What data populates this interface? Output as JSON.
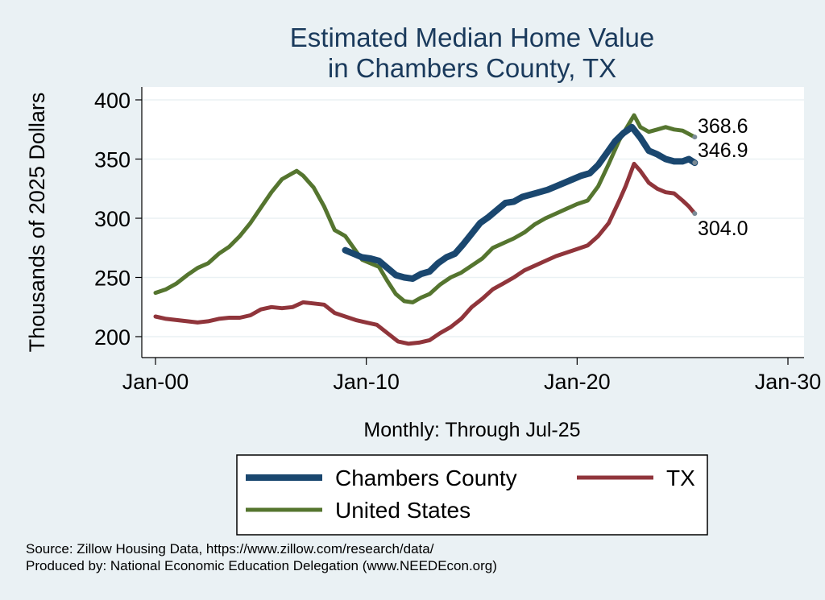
{
  "chart_data": {
    "type": "line",
    "title": [
      "Estimated Median Home Value",
      "in Chambers County, TX"
    ],
    "xlabel": "Monthly: Through Jul-25",
    "ylabel": "Thousands of 2025 Dollars",
    "ylim": [
      190,
      410
    ],
    "xlim": [
      2000.0,
      2030.0
    ],
    "yticks": [
      200,
      250,
      300,
      350,
      400
    ],
    "xticks": [
      {
        "value": 2000.0,
        "label": "Jan-00"
      },
      {
        "value": 2010.0,
        "label": "Jan-10"
      },
      {
        "value": 2020.0,
        "label": "Jan-20"
      },
      {
        "value": 2030.0,
        "label": "Jan-30"
      }
    ],
    "grid": true,
    "legend_position": "bottom",
    "series": [
      {
        "name": "Chambers County",
        "color": "#1a476f",
        "end_label": "346.9",
        "points": [
          [
            2009.0,
            273
          ],
          [
            2009.4,
            270
          ],
          [
            2009.8,
            267
          ],
          [
            2010.2,
            266
          ],
          [
            2010.6,
            264
          ],
          [
            2011.0,
            258
          ],
          [
            2011.4,
            252
          ],
          [
            2011.8,
            250
          ],
          [
            2012.2,
            249
          ],
          [
            2012.6,
            253
          ],
          [
            2013.0,
            255
          ],
          [
            2013.4,
            262
          ],
          [
            2013.8,
            267
          ],
          [
            2014.2,
            270
          ],
          [
            2014.6,
            278
          ],
          [
            2015.0,
            287
          ],
          [
            2015.4,
            296
          ],
          [
            2015.8,
            301
          ],
          [
            2016.2,
            307
          ],
          [
            2016.6,
            313
          ],
          [
            2017.0,
            314
          ],
          [
            2017.4,
            318
          ],
          [
            2017.8,
            320
          ],
          [
            2018.2,
            322
          ],
          [
            2018.6,
            324
          ],
          [
            2019.0,
            327
          ],
          [
            2019.4,
            330
          ],
          [
            2019.8,
            333
          ],
          [
            2020.2,
            336
          ],
          [
            2020.6,
            338
          ],
          [
            2021.0,
            345
          ],
          [
            2021.4,
            355
          ],
          [
            2021.8,
            365
          ],
          [
            2022.2,
            372
          ],
          [
            2022.6,
            377
          ],
          [
            2023.0,
            368
          ],
          [
            2023.4,
            357
          ],
          [
            2023.8,
            354
          ],
          [
            2024.2,
            350
          ],
          [
            2024.6,
            348
          ],
          [
            2025.0,
            348
          ],
          [
            2025.3,
            350
          ],
          [
            2025.58,
            346.9
          ]
        ]
      },
      {
        "name": "TX",
        "color": "#90353b",
        "end_label": "304.0",
        "points": [
          [
            2000.0,
            217
          ],
          [
            2000.5,
            215
          ],
          [
            2001.0,
            214
          ],
          [
            2001.5,
            213
          ],
          [
            2002.0,
            212
          ],
          [
            2002.5,
            213
          ],
          [
            2003.0,
            215
          ],
          [
            2003.5,
            216
          ],
          [
            2004.0,
            216
          ],
          [
            2004.5,
            218
          ],
          [
            2005.0,
            223
          ],
          [
            2005.5,
            225
          ],
          [
            2006.0,
            224
          ],
          [
            2006.5,
            225
          ],
          [
            2007.0,
            229
          ],
          [
            2007.5,
            228
          ],
          [
            2008.0,
            227
          ],
          [
            2008.5,
            220
          ],
          [
            2009.0,
            217
          ],
          [
            2009.5,
            214
          ],
          [
            2010.0,
            212
          ],
          [
            2010.5,
            210
          ],
          [
            2011.0,
            203
          ],
          [
            2011.5,
            196
          ],
          [
            2012.0,
            194
          ],
          [
            2012.5,
            195
          ],
          [
            2013.0,
            197
          ],
          [
            2013.5,
            203
          ],
          [
            2014.0,
            208
          ],
          [
            2014.5,
            215
          ],
          [
            2015.0,
            225
          ],
          [
            2015.5,
            232
          ],
          [
            2016.0,
            240
          ],
          [
            2016.5,
            245
          ],
          [
            2017.0,
            250
          ],
          [
            2017.5,
            256
          ],
          [
            2018.0,
            260
          ],
          [
            2018.5,
            264
          ],
          [
            2019.0,
            268
          ],
          [
            2019.5,
            271
          ],
          [
            2020.0,
            274
          ],
          [
            2020.5,
            277
          ],
          [
            2021.0,
            285
          ],
          [
            2021.5,
            296
          ],
          [
            2022.0,
            315
          ],
          [
            2022.3,
            327
          ],
          [
            2022.7,
            346
          ],
          [
            2023.0,
            340
          ],
          [
            2023.4,
            330
          ],
          [
            2023.8,
            325
          ],
          [
            2024.2,
            322
          ],
          [
            2024.6,
            321
          ],
          [
            2025.0,
            315
          ],
          [
            2025.3,
            310
          ],
          [
            2025.58,
            304.0
          ]
        ]
      },
      {
        "name": "United States",
        "color": "#55752f",
        "end_label": "368.6",
        "points": [
          [
            2000.0,
            237
          ],
          [
            2000.5,
            240
          ],
          [
            2001.0,
            245
          ],
          [
            2001.5,
            252
          ],
          [
            2002.0,
            258
          ],
          [
            2002.5,
            262
          ],
          [
            2003.0,
            270
          ],
          [
            2003.5,
            276
          ],
          [
            2004.0,
            285
          ],
          [
            2004.5,
            296
          ],
          [
            2005.0,
            309
          ],
          [
            2005.5,
            322
          ],
          [
            2006.0,
            333
          ],
          [
            2006.5,
            338
          ],
          [
            2006.7,
            340
          ],
          [
            2007.0,
            336
          ],
          [
            2007.5,
            326
          ],
          [
            2008.0,
            310
          ],
          [
            2008.5,
            290
          ],
          [
            2009.0,
            285
          ],
          [
            2009.4,
            275
          ],
          [
            2009.8,
            265
          ],
          [
            2010.2,
            262
          ],
          [
            2010.6,
            259
          ],
          [
            2011.0,
            247
          ],
          [
            2011.4,
            236
          ],
          [
            2011.8,
            230
          ],
          [
            2012.2,
            229
          ],
          [
            2012.6,
            233
          ],
          [
            2013.0,
            236
          ],
          [
            2013.5,
            244
          ],
          [
            2014.0,
            250
          ],
          [
            2014.5,
            254
          ],
          [
            2015.0,
            260
          ],
          [
            2015.5,
            266
          ],
          [
            2016.0,
            275
          ],
          [
            2016.5,
            279
          ],
          [
            2017.0,
            283
          ],
          [
            2017.5,
            288
          ],
          [
            2018.0,
            295
          ],
          [
            2018.5,
            300
          ],
          [
            2019.0,
            304
          ],
          [
            2019.5,
            308
          ],
          [
            2020.0,
            312
          ],
          [
            2020.5,
            315
          ],
          [
            2021.0,
            327
          ],
          [
            2021.5,
            346
          ],
          [
            2022.0,
            366
          ],
          [
            2022.3,
            375
          ],
          [
            2022.7,
            387
          ],
          [
            2023.0,
            377
          ],
          [
            2023.4,
            373
          ],
          [
            2023.8,
            375
          ],
          [
            2024.2,
            377
          ],
          [
            2024.6,
            375
          ],
          [
            2025.0,
            374
          ],
          [
            2025.58,
            368.6
          ]
        ]
      }
    ]
  },
  "source_line": "Source: Zillow Housing Data, https://www.zillow.com/research/data/",
  "produced_line": "Produced by: National Economic Education Delegation (www.NEEDEcon.org)",
  "colors": {
    "background": "#eaf1f4",
    "plot_bg": "#ffffff",
    "title": "#1a3a5c",
    "grid": "#eaf1f4"
  }
}
